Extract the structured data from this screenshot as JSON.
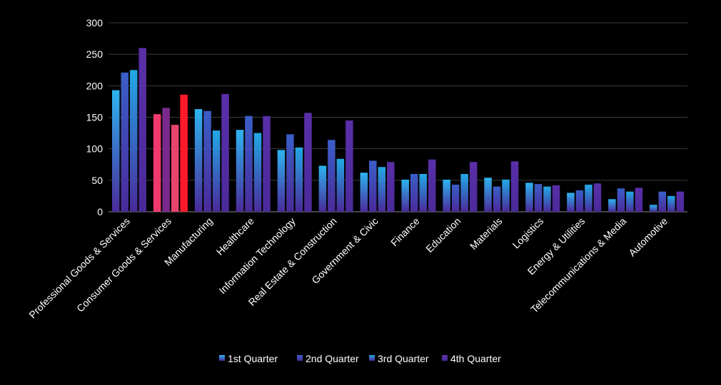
{
  "chart_data": {
    "type": "bar",
    "categories": [
      "Professional Goods & Services",
      "Consumer Goods & Services",
      "Manufacturing",
      "Healthcare",
      "Information Technology",
      "Real Estate & Construction",
      "Government & Civic",
      "Finance",
      "Education",
      "Materials",
      "Logistics",
      "Energy & Utilities",
      "Telecommunications & Media",
      "Automotive"
    ],
    "series": [
      {
        "name": "1st Quarter",
        "values": [
          193,
          155,
          163,
          130,
          98,
          73,
          62,
          51,
          51,
          54,
          46,
          30,
          20,
          11
        ]
      },
      {
        "name": "2nd Quarter",
        "values": [
          221,
          165,
          160,
          152,
          123,
          114,
          81,
          60,
          43,
          40,
          44,
          34,
          37,
          32
        ]
      },
      {
        "name": "3rd Quarter",
        "values": [
          225,
          138,
          129,
          125,
          102,
          84,
          71,
          60,
          60,
          51,
          40,
          43,
          32,
          25
        ]
      },
      {
        "name": "4th Quarter",
        "values": [
          260,
          186,
          187,
          152,
          157,
          145,
          79,
          83,
          79,
          80,
          42,
          45,
          38,
          32
        ]
      }
    ],
    "ylim": [
      0,
      300
    ],
    "yticks": [
      0,
      50,
      100,
      150,
      200,
      250,
      300
    ],
    "grid": true,
    "legend": "bottom-center",
    "colors": {
      "background": "#000000",
      "gridline": "#3a3a3a",
      "series": [
        "#2db4f0",
        "#3a5fc8",
        "#22a8e6",
        "#5a2fa8"
      ],
      "highlight": [
        "#f03a6e",
        "#7a2a8c",
        "#e8446e",
        "#ff1a2a"
      ],
      "highlight_category_index": 1
    }
  }
}
